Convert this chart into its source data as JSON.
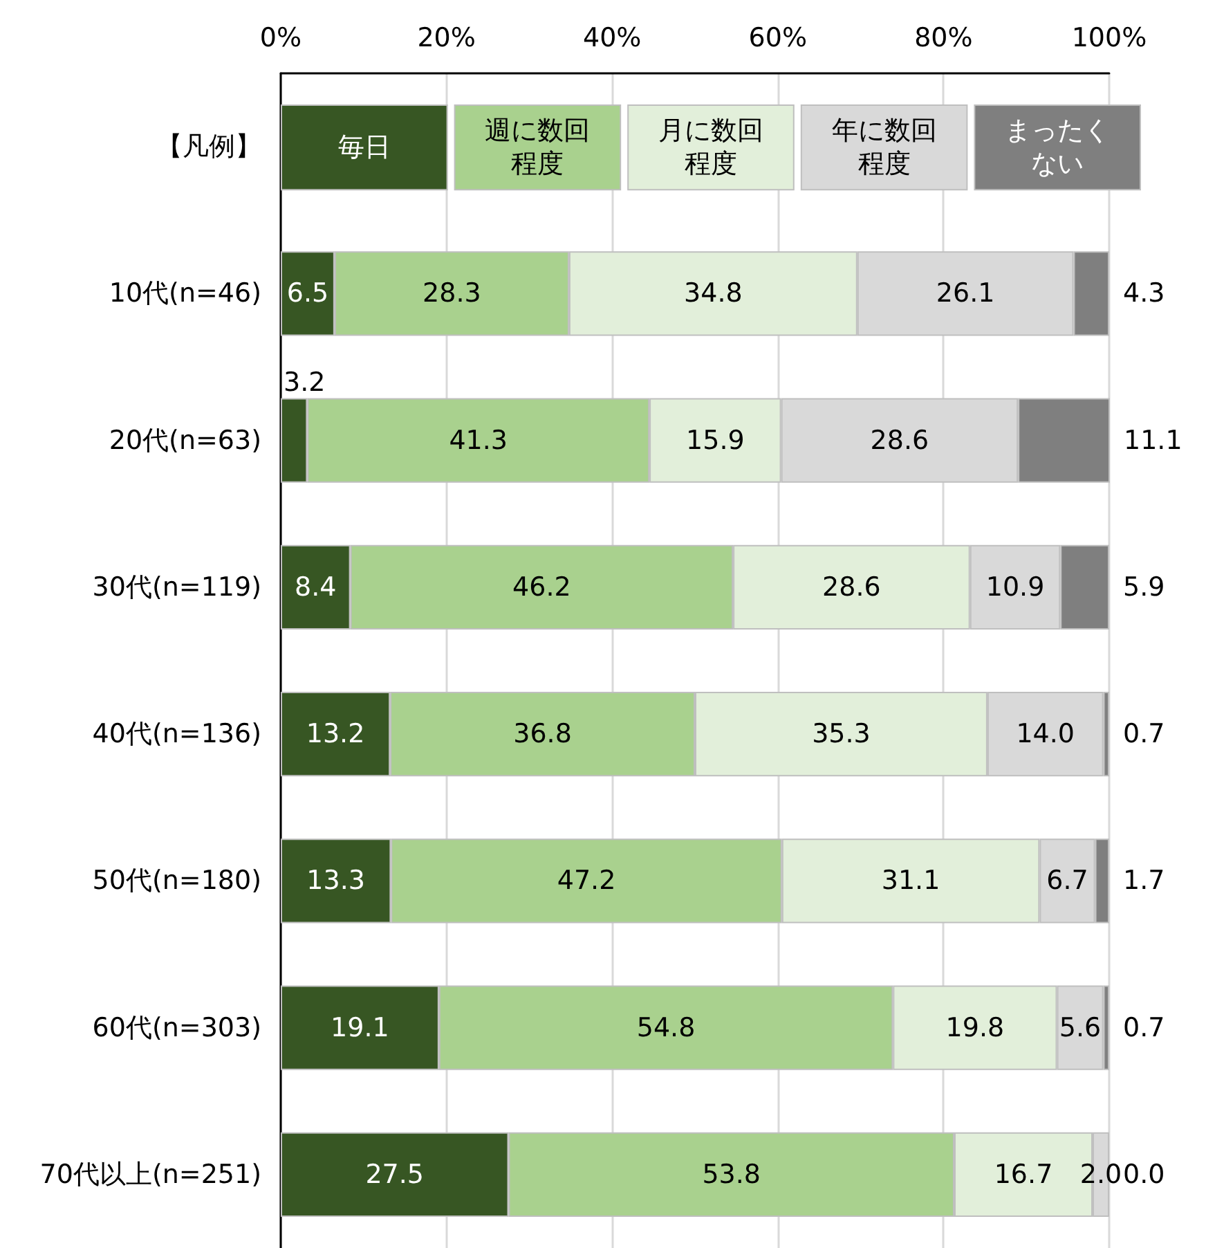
{
  "chart_data": {
    "type": "bar",
    "orientation": "horizontal",
    "stacked": true,
    "categories": [
      "10代(n=46)",
      "20代(n=63)",
      "30代(n=119)",
      "40代(n=136)",
      "50代(n=180)",
      "60代(n=303)",
      "70代以上(n=251)"
    ],
    "legend_title": "【凡例】",
    "legend": "top",
    "grid": "x",
    "xlim": [
      0,
      100
    ],
    "xticks": [
      {
        "value": 0,
        "label": "0%"
      },
      {
        "value": 20,
        "label": "20%"
      },
      {
        "value": 40,
        "label": "40%"
      },
      {
        "value": 60,
        "label": "60%"
      },
      {
        "value": 80,
        "label": "80%"
      },
      {
        "value": 100,
        "label": "100%"
      }
    ],
    "series": [
      {
        "name": "毎日",
        "color": "#375623",
        "values": [
          6.5,
          3.2,
          8.4,
          13.2,
          13.3,
          19.1,
          27.5
        ],
        "value_labels": [
          "6.5",
          "3.2",
          "8.4",
          "13.2",
          "13.3",
          "19.1",
          "27.5"
        ]
      },
      {
        "name": "週に数回程度",
        "color": "#a9d18e",
        "values": [
          28.3,
          41.3,
          46.2,
          36.8,
          47.2,
          54.8,
          53.8
        ],
        "value_labels": [
          "28.3",
          "41.3",
          "46.2",
          "36.8",
          "47.2",
          "54.8",
          "53.8"
        ]
      },
      {
        "name": "月に数回程度",
        "color": "#e2efda",
        "values": [
          34.8,
          15.9,
          28.6,
          35.3,
          31.1,
          19.8,
          16.7
        ],
        "value_labels": [
          "34.8",
          "15.9",
          "28.6",
          "35.3",
          "31.1",
          "19.8",
          "16.7"
        ]
      },
      {
        "name": "年に数回程度",
        "color": "#d9d9d9",
        "values": [
          26.1,
          28.6,
          10.9,
          14.0,
          6.7,
          5.6,
          2.0
        ],
        "value_labels": [
          "26.1",
          "28.6",
          "10.9",
          "14.0",
          "6.7",
          "5.6",
          "2.0"
        ]
      },
      {
        "name": "まったくない",
        "color": "#7f7f7f",
        "values": [
          4.3,
          11.1,
          5.9,
          0.7,
          1.7,
          0.7,
          0.0
        ],
        "value_labels": [
          "4.3",
          "11.1",
          "5.9",
          "0.7",
          "1.7",
          "0.7",
          "0.0"
        ]
      }
    ]
  }
}
